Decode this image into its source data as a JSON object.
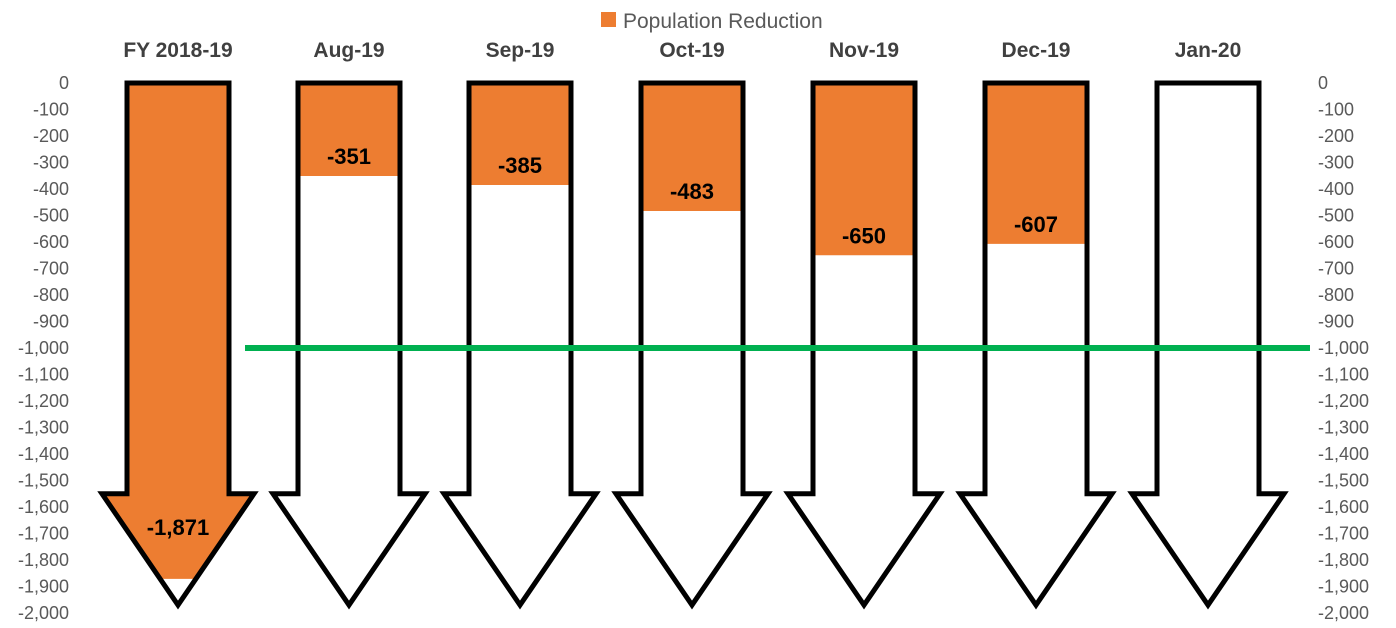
{
  "chart_data": {
    "type": "bar",
    "legend": {
      "label": "Population Reduction",
      "position": "top"
    },
    "categories": [
      "FY 2018-19",
      "Aug-19",
      "Sep-19",
      "Oct-19",
      "Nov-19",
      "Dec-19",
      "Jan-20"
    ],
    "series": [
      {
        "name": "Population Reduction",
        "values": [
          -1871,
          -351,
          -385,
          -483,
          -650,
          -607,
          null
        ],
        "color": "#ED7D31"
      }
    ],
    "data_labels": [
      "-1,871",
      "-351",
      "-385",
      "-483",
      "-650",
      "-607",
      ""
    ],
    "ylim": [
      -2000,
      0
    ],
    "yticks": [
      "0",
      "-100",
      "-200",
      "-300",
      "-400",
      "-500",
      "-600",
      "-700",
      "-800",
      "-900",
      "-1,000",
      "-1,100",
      "-1,200",
      "-1,300",
      "-1,400",
      "-1,500",
      "-1,600",
      "-1,700",
      "-1,800",
      "-1,900",
      "-2,000"
    ],
    "secondary_axis": true,
    "reference_line": {
      "value": -1000,
      "color": "#00B050"
    },
    "bar_shape": "down-arrow",
    "outline_color": "#000000"
  }
}
